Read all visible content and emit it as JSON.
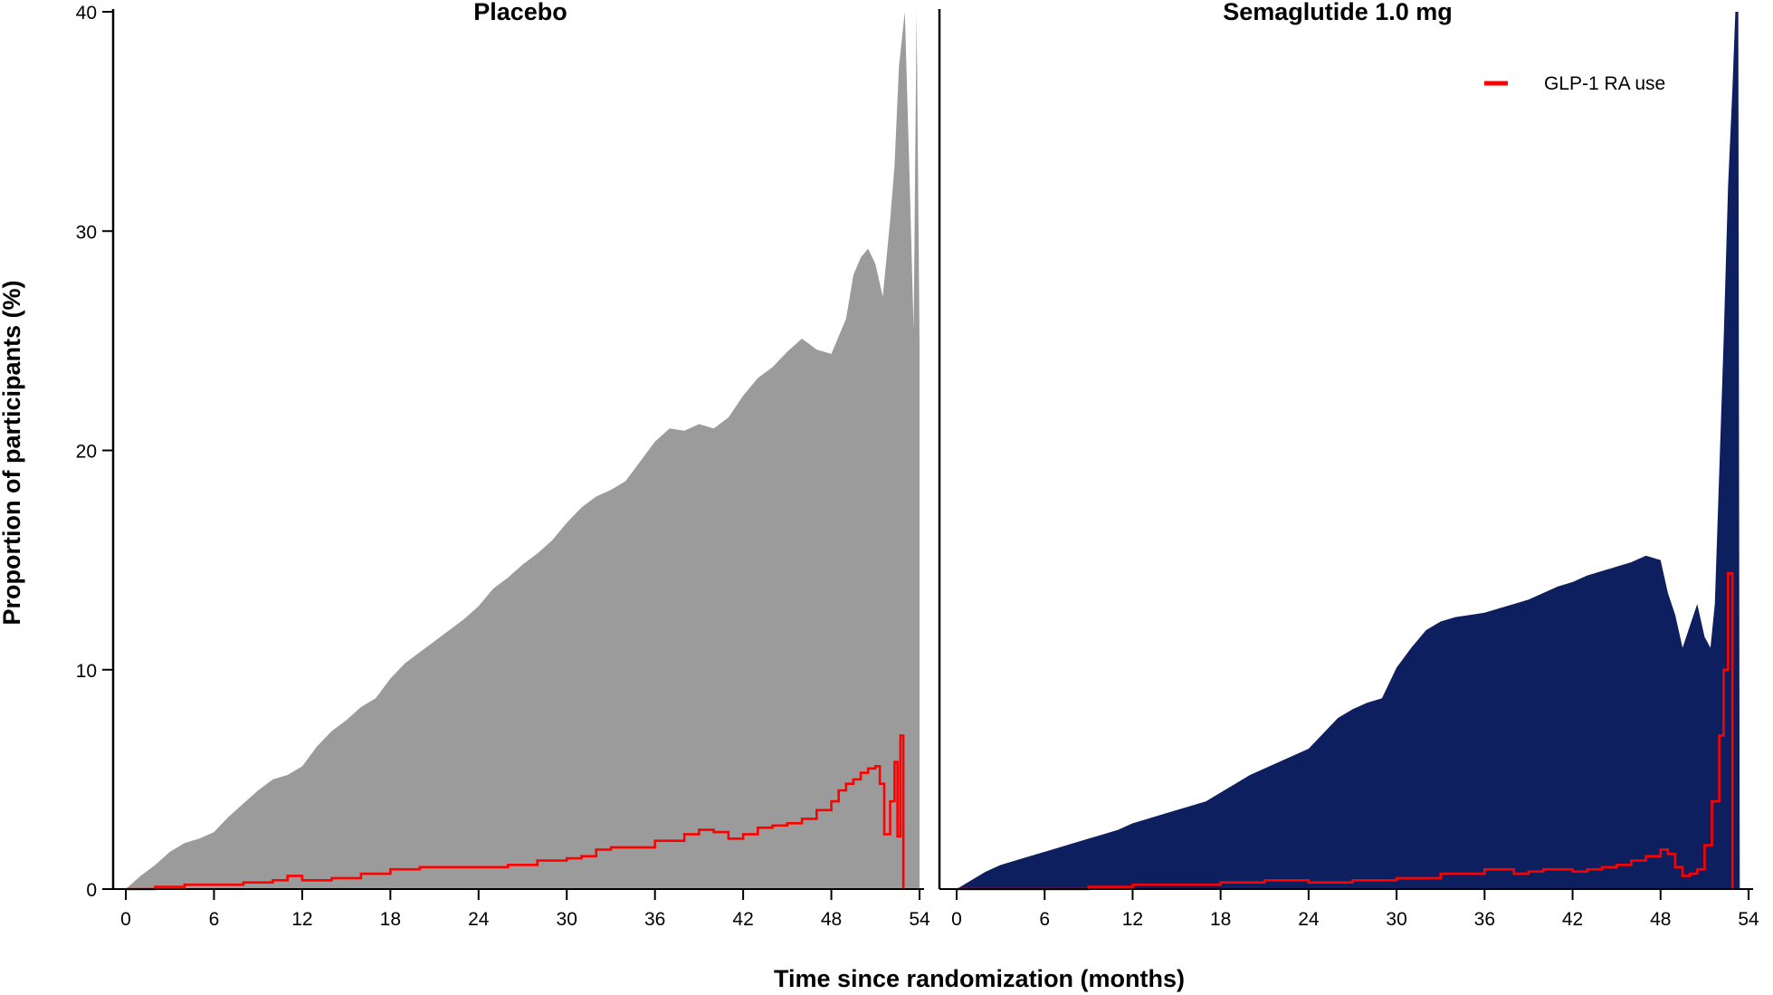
{
  "chart_data": [
    {
      "type": "area",
      "title": "Placebo",
      "xlabel": "Time since randomization (months)",
      "ylabel": "Proportion of participants (%)",
      "xlim": [
        0,
        54
      ],
      "ylim": [
        0,
        40
      ],
      "xticks": [
        0,
        6,
        12,
        18,
        24,
        30,
        36,
        42,
        48,
        54
      ],
      "yticks": [
        0,
        10,
        20,
        30,
        40
      ],
      "fill_color": "#9b9b9b",
      "series": [
        {
          "name": "",
          "kind": "area",
          "color": "#9b9b9b",
          "points": [
            [
              0,
              0
            ],
            [
              1,
              0.6
            ],
            [
              2,
              1.1
            ],
            [
              3,
              1.7
            ],
            [
              4,
              2.1
            ],
            [
              5,
              2.3
            ],
            [
              6,
              2.6
            ],
            [
              7,
              3.3
            ],
            [
              8,
              3.9
            ],
            [
              9,
              4.5
            ],
            [
              10,
              5.0
            ],
            [
              11,
              5.2
            ],
            [
              12,
              5.6
            ],
            [
              13,
              6.5
            ],
            [
              14,
              7.2
            ],
            [
              15,
              7.7
            ],
            [
              16,
              8.3
            ],
            [
              17,
              8.7
            ],
            [
              18,
              9.6
            ],
            [
              19,
              10.3
            ],
            [
              20,
              10.8
            ],
            [
              21,
              11.3
            ],
            [
              22,
              11.8
            ],
            [
              23,
              12.3
            ],
            [
              24,
              12.9
            ],
            [
              25,
              13.7
            ],
            [
              26,
              14.2
            ],
            [
              27,
              14.8
            ],
            [
              28,
              15.3
            ],
            [
              29,
              15.9
            ],
            [
              30,
              16.7
            ],
            [
              31,
              17.4
            ],
            [
              32,
              17.9
            ],
            [
              33,
              18.2
            ],
            [
              34,
              18.6
            ],
            [
              35,
              19.5
            ],
            [
              36,
              20.4
            ],
            [
              37,
              21.0
            ],
            [
              38,
              20.9
            ],
            [
              39,
              21.2
            ],
            [
              40,
              21.0
            ],
            [
              41,
              21.5
            ],
            [
              42,
              22.5
            ],
            [
              43,
              23.3
            ],
            [
              44,
              23.8
            ],
            [
              45,
              24.5
            ],
            [
              46,
              25.1
            ],
            [
              47,
              24.6
            ],
            [
              48,
              24.4
            ],
            [
              49,
              26.0
            ],
            [
              49.5,
              28.0
            ],
            [
              50,
              28.8
            ],
            [
              50.5,
              29.2
            ],
            [
              51,
              28.5
            ],
            [
              51.5,
              27.0
            ],
            [
              52,
              30.5
            ],
            [
              52.3,
              33.0
            ],
            [
              52.6,
              37.5
            ],
            [
              53,
              40.0
            ],
            [
              53.3,
              33.0
            ],
            [
              53.6,
              25.5
            ],
            [
              53.8,
              40.0
            ],
            [
              54,
              25.0
            ]
          ]
        },
        {
          "name": "GLP-1 RA use",
          "kind": "line",
          "color": "#ff0000",
          "points": [
            [
              0,
              0
            ],
            [
              2,
              0.1
            ],
            [
              4,
              0.2
            ],
            [
              6,
              0.2
            ],
            [
              8,
              0.3
            ],
            [
              10,
              0.4
            ],
            [
              11,
              0.6
            ],
            [
              12,
              0.4
            ],
            [
              14,
              0.5
            ],
            [
              16,
              0.7
            ],
            [
              18,
              0.9
            ],
            [
              20,
              1.0
            ],
            [
              22,
              1.0
            ],
            [
              24,
              1.0
            ],
            [
              26,
              1.1
            ],
            [
              28,
              1.3
            ],
            [
              30,
              1.4
            ],
            [
              31,
              1.5
            ],
            [
              32,
              1.8
            ],
            [
              33,
              1.9
            ],
            [
              34,
              1.9
            ],
            [
              36,
              2.2
            ],
            [
              38,
              2.5
            ],
            [
              39,
              2.7
            ],
            [
              40,
              2.6
            ],
            [
              41,
              2.3
            ],
            [
              42,
              2.5
            ],
            [
              43,
              2.8
            ],
            [
              44,
              2.9
            ],
            [
              45,
              3.0
            ],
            [
              46,
              3.2
            ],
            [
              47,
              3.6
            ],
            [
              48,
              4.0
            ],
            [
              48.5,
              4.5
            ],
            [
              49,
              4.8
            ],
            [
              49.5,
              5.0
            ],
            [
              50,
              5.3
            ],
            [
              50.5,
              5.5
            ],
            [
              51,
              5.6
            ],
            [
              51.3,
              4.8
            ],
            [
              51.6,
              2.5
            ],
            [
              52,
              4.0
            ],
            [
              52.3,
              5.8
            ],
            [
              52.5,
              2.4
            ],
            [
              52.7,
              7.0
            ],
            [
              52.9,
              0.0
            ]
          ]
        }
      ]
    },
    {
      "type": "area",
      "title": "Semaglutide 1.0 mg",
      "xlabel": "Time since randomization (months)",
      "ylabel": "",
      "xlim": [
        0,
        54
      ],
      "ylim": [
        0,
        40
      ],
      "xticks": [
        0,
        6,
        12,
        18,
        24,
        30,
        36,
        42,
        48,
        54
      ],
      "yticks": [],
      "fill_color": "#0d1f5f",
      "legend": {
        "placement": "top-right",
        "entries": [
          "GLP-1 RA use"
        ]
      },
      "series": [
        {
          "name": "",
          "kind": "area",
          "color": "#0d1f5f",
          "points": [
            [
              0,
              0
            ],
            [
              1,
              0.4
            ],
            [
              2,
              0.8
            ],
            [
              3,
              1.1
            ],
            [
              4,
              1.3
            ],
            [
              5,
              1.5
            ],
            [
              6,
              1.7
            ],
            [
              7,
              1.9
            ],
            [
              8,
              2.1
            ],
            [
              9,
              2.3
            ],
            [
              10,
              2.5
            ],
            [
              11,
              2.7
            ],
            [
              12,
              3.0
            ],
            [
              13,
              3.2
            ],
            [
              14,
              3.4
            ],
            [
              15,
              3.6
            ],
            [
              16,
              3.8
            ],
            [
              17,
              4.0
            ],
            [
              18,
              4.4
            ],
            [
              19,
              4.8
            ],
            [
              20,
              5.2
            ],
            [
              21,
              5.5
            ],
            [
              22,
              5.8
            ],
            [
              23,
              6.1
            ],
            [
              24,
              6.4
            ],
            [
              25,
              7.1
            ],
            [
              26,
              7.8
            ],
            [
              27,
              8.2
            ],
            [
              28,
              8.5
            ],
            [
              29,
              8.7
            ],
            [
              30,
              10.1
            ],
            [
              31,
              11.0
            ],
            [
              32,
              11.8
            ],
            [
              33,
              12.2
            ],
            [
              34,
              12.4
            ],
            [
              35,
              12.5
            ],
            [
              36,
              12.6
            ],
            [
              37,
              12.8
            ],
            [
              38,
              13.0
            ],
            [
              39,
              13.2
            ],
            [
              40,
              13.5
            ],
            [
              41,
              13.8
            ],
            [
              42,
              14.0
            ],
            [
              43,
              14.3
            ],
            [
              44,
              14.5
            ],
            [
              45,
              14.7
            ],
            [
              46,
              14.9
            ],
            [
              47,
              15.2
            ],
            [
              48,
              15.0
            ],
            [
              48.5,
              13.5
            ],
            [
              49,
              12.5
            ],
            [
              49.5,
              11.0
            ],
            [
              50,
              12.0
            ],
            [
              50.5,
              13.0
            ],
            [
              51,
              11.5
            ],
            [
              51.4,
              11.0
            ],
            [
              51.7,
              13.0
            ],
            [
              52.0,
              19.0
            ],
            [
              52.3,
              25.0
            ],
            [
              52.6,
              32.0
            ],
            [
              52.9,
              36.5
            ],
            [
              53.1,
              40.0
            ],
            [
              53.3,
              40.0
            ],
            [
              53.4,
              0.0
            ]
          ]
        },
        {
          "name": "GLP-1 RA use",
          "kind": "line",
          "color": "#ff0000",
          "points": [
            [
              0,
              0
            ],
            [
              6,
              0.0
            ],
            [
              9,
              0.1
            ],
            [
              12,
              0.2
            ],
            [
              18,
              0.3
            ],
            [
              21,
              0.4
            ],
            [
              24,
              0.3
            ],
            [
              27,
              0.4
            ],
            [
              30,
              0.5
            ],
            [
              33,
              0.7
            ],
            [
              36,
              0.9
            ],
            [
              38,
              0.7
            ],
            [
              39,
              0.8
            ],
            [
              40,
              0.9
            ],
            [
              42,
              0.8
            ],
            [
              43,
              0.9
            ],
            [
              44,
              1.0
            ],
            [
              45,
              1.1
            ],
            [
              46,
              1.3
            ],
            [
              47,
              1.5
            ],
            [
              48,
              1.8
            ],
            [
              48.5,
              1.6
            ],
            [
              49,
              1.0
            ],
            [
              49.5,
              0.6
            ],
            [
              50,
              0.7
            ],
            [
              50.5,
              0.9
            ],
            [
              51,
              2.0
            ],
            [
              51.5,
              4.0
            ],
            [
              52,
              7.0
            ],
            [
              52.3,
              10.0
            ],
            [
              52.6,
              14.4
            ],
            [
              52.9,
              0.0
            ]
          ]
        }
      ]
    }
  ]
}
